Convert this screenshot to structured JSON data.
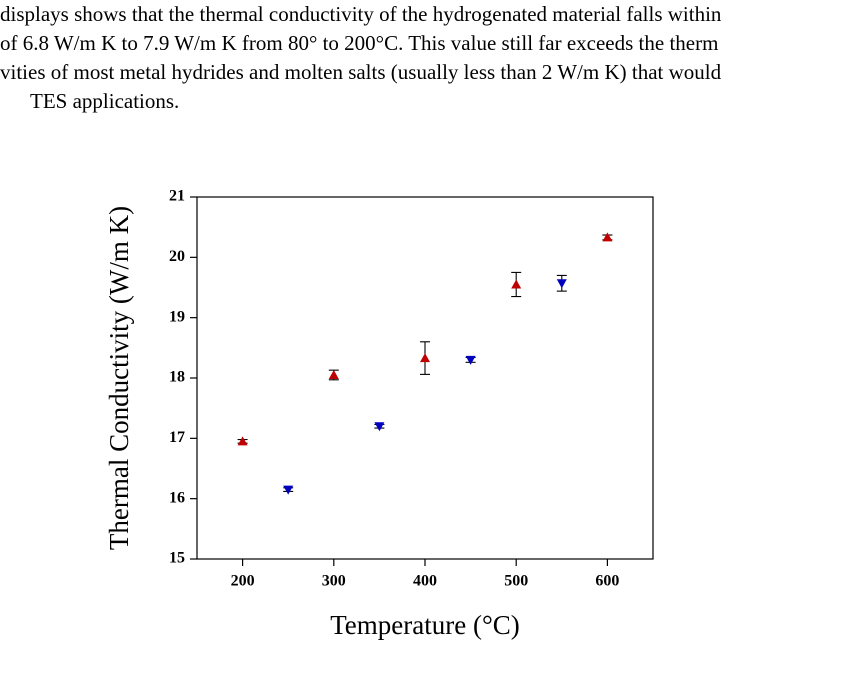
{
  "text": {
    "lines": [
      "displays shows that the thermal conductivity of the hydrogenated material falls within",
      "of 6.8 W/m K to 7.9 W/m K from 80° to 200°C. This value still far exceeds the therm",
      "vities of most metal hydrides and molten salts (usually less than 2 W/m K) that would",
      "TES applications."
    ]
  },
  "chart_data": {
    "type": "scatter",
    "x_label": "Temperature (°C)",
    "y_label": "Thermal Conductivity (W/m K)",
    "xlim": [
      150,
      650
    ],
    "xticks": [
      200,
      300,
      400,
      500,
      600
    ],
    "ylim": [
      15,
      21
    ],
    "yticks": [
      15,
      16,
      17,
      18,
      19,
      20,
      21
    ],
    "series": [
      {
        "color": "#c00000",
        "marker": "triangle-up",
        "x": [
          200,
          300,
          400,
          500,
          600
        ],
        "values": [
          16.95,
          18.05,
          18.33,
          19.55,
          20.33
        ],
        "errors": [
          0.03,
          0.08,
          0.27,
          0.2,
          0.04
        ]
      },
      {
        "color": "#0000c0",
        "marker": "triangle-down",
        "x": [
          250,
          350,
          450,
          550
        ],
        "values": [
          16.15,
          17.2,
          18.3,
          19.57
        ],
        "errors": [
          0.03,
          0.03,
          0.04,
          0.13
        ]
      }
    ]
  }
}
